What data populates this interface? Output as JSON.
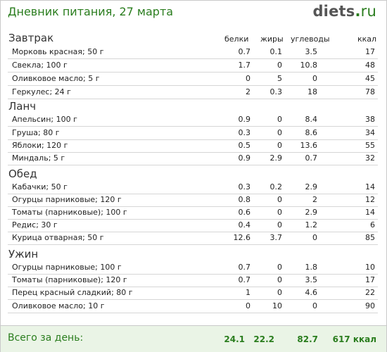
{
  "header": {
    "title": "Дневник питания, 27 марта",
    "logo_name": "diets",
    "logo_dot": ".",
    "logo_tld": "ru"
  },
  "columns": {
    "protein": "белки",
    "fat": "жиры",
    "carbs": "углеводы",
    "kcal": "ккал"
  },
  "meals": [
    {
      "name": "Завтрак",
      "items": [
        {
          "name": "Морковь красная; 50 г",
          "protein": "0.7",
          "fat": "0.1",
          "carbs": "3.5",
          "kcal": "17"
        },
        {
          "name": "Свекла; 100 г",
          "protein": "1.7",
          "fat": "0",
          "carbs": "10.8",
          "kcal": "48"
        },
        {
          "name": "Оливковое масло; 5 г",
          "protein": "0",
          "fat": "5",
          "carbs": "0",
          "kcal": "45"
        },
        {
          "name": "Геркулес; 24 г",
          "protein": "2",
          "fat": "0.3",
          "carbs": "18",
          "kcal": "78"
        }
      ]
    },
    {
      "name": "Ланч",
      "items": [
        {
          "name": "Апельсин; 100 г",
          "protein": "0.9",
          "fat": "0",
          "carbs": "8.4",
          "kcal": "38"
        },
        {
          "name": "Груша; 80 г",
          "protein": "0.3",
          "fat": "0",
          "carbs": "8.6",
          "kcal": "34"
        },
        {
          "name": "Яблоки; 120 г",
          "protein": "0.5",
          "fat": "0",
          "carbs": "13.6",
          "kcal": "55"
        },
        {
          "name": "Миндаль; 5 г",
          "protein": "0.9",
          "fat": "2.9",
          "carbs": "0.7",
          "kcal": "32"
        }
      ]
    },
    {
      "name": "Обед",
      "items": [
        {
          "name": "Кабачки; 50 г",
          "protein": "0.3",
          "fat": "0.2",
          "carbs": "2.9",
          "kcal": "14"
        },
        {
          "name": "Огурцы парниковые; 120 г",
          "protein": "0.8",
          "fat": "0",
          "carbs": "2",
          "kcal": "12"
        },
        {
          "name": "Томаты (парниковые); 100 г",
          "protein": "0.6",
          "fat": "0",
          "carbs": "2.9",
          "kcal": "14"
        },
        {
          "name": "Редис; 30 г",
          "protein": "0.4",
          "fat": "0",
          "carbs": "1.2",
          "kcal": "6"
        },
        {
          "name": "Курица отварная; 50 г",
          "protein": "12.6",
          "fat": "3.7",
          "carbs": "0",
          "kcal": "85"
        }
      ]
    },
    {
      "name": "Ужин",
      "items": [
        {
          "name": "Огурцы парниковые; 100 г",
          "protein": "0.7",
          "fat": "0",
          "carbs": "1.8",
          "kcal": "10"
        },
        {
          "name": "Томаты (парниковые); 120 г",
          "protein": "0.7",
          "fat": "0",
          "carbs": "3.5",
          "kcal": "17"
        },
        {
          "name": "Перец красный сладкий; 80 г",
          "protein": "1",
          "fat": "0",
          "carbs": "4.6",
          "kcal": "22"
        },
        {
          "name": "Оливковое масло; 10 г",
          "protein": "0",
          "fat": "10",
          "carbs": "0",
          "kcal": "90"
        }
      ]
    }
  ],
  "totals": {
    "label": "Всего за день:",
    "protein": "24.1",
    "fat": "22.2",
    "carbs": "82.7",
    "kcal": "617 ккал"
  }
}
